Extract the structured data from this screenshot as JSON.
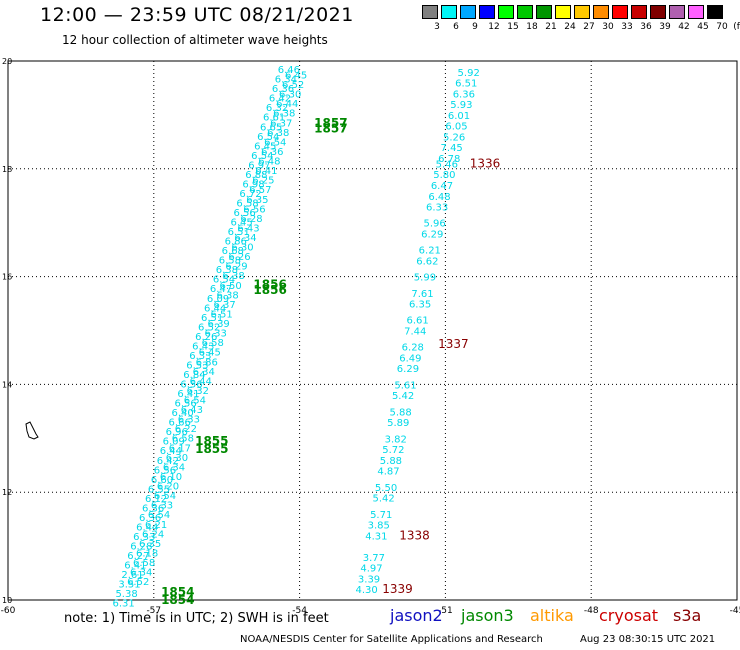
{
  "title": "12:00 — 23:59 UTC 08/21/2021",
  "subtitle": "12 hour collection of altimeter wave heights",
  "legend": {
    "unit": "(ft)",
    "bins": [
      {
        "label": "3",
        "color": "#808080"
      },
      {
        "label": "6",
        "color": "#00f5f5"
      },
      {
        "label": "9",
        "color": "#00a8ff"
      },
      {
        "label": "12",
        "color": "#0000ff"
      },
      {
        "label": "15",
        "color": "#00ff00"
      },
      {
        "label": "18",
        "color": "#00c800"
      },
      {
        "label": "21",
        "color": "#009600"
      },
      {
        "label": "24",
        "color": "#ffff00"
      },
      {
        "label": "27",
        "color": "#ffc800"
      },
      {
        "label": "30",
        "color": "#ff8c00"
      },
      {
        "label": "33",
        "color": "#ff0000"
      },
      {
        "label": "36",
        "color": "#c80000"
      },
      {
        "label": "39",
        "color": "#800000"
      },
      {
        "label": "42",
        "color": "#b060b0"
      },
      {
        "label": "45",
        "color": "#ff60ff"
      },
      {
        "label": "70",
        "color": "#000000"
      }
    ]
  },
  "axes": {
    "lon_min": -60,
    "lon_max": -45,
    "lat_min": 10,
    "lat_max": 20,
    "lon_ticks": [
      "-60",
      "-57",
      "-54",
      "-51",
      "-48",
      "-45"
    ],
    "lat_ticks": [
      "20",
      "18",
      "16",
      "14",
      "12",
      "10"
    ]
  },
  "colors": {
    "swh_text": "#00d8e8",
    "jason2": "#1010c0",
    "jason3": "#008800",
    "altika": "#ff9900",
    "cryosat": "#cc0000",
    "s3a": "#880000",
    "grid": "#000000",
    "coast": "#000000"
  },
  "track_right": {
    "points": [
      {
        "lon": -50.75,
        "lat": 19.8,
        "v": "5.92"
      },
      {
        "lon": -50.8,
        "lat": 19.6,
        "v": "6.51"
      },
      {
        "lon": -50.85,
        "lat": 19.4,
        "v": "6.36"
      },
      {
        "lon": -50.9,
        "lat": 19.2,
        "v": "5.93"
      },
      {
        "lon": -50.95,
        "lat": 19.0,
        "v": "6.01"
      },
      {
        "lon": -51.0,
        "lat": 18.8,
        "v": "6.05"
      },
      {
        "lon": -51.05,
        "lat": 18.6,
        "v": "5.26"
      },
      {
        "lon": -51.1,
        "lat": 18.4,
        "v": "7.45"
      },
      {
        "lon": -51.15,
        "lat": 18.2,
        "v": "6.78"
      },
      {
        "lon": -51.2,
        "lat": 18.1,
        "v": "5.46"
      },
      {
        "lon": -51.25,
        "lat": 17.9,
        "v": "5.80"
      },
      {
        "lon": -51.3,
        "lat": 17.7,
        "v": "6.47"
      },
      {
        "lon": -51.35,
        "lat": 17.5,
        "v": "6.48"
      },
      {
        "lon": -51.4,
        "lat": 17.3,
        "v": "6.33"
      },
      {
        "lon": -51.45,
        "lat": 17.0,
        "v": "5.96"
      },
      {
        "lon": -51.5,
        "lat": 16.8,
        "v": "6.29"
      },
      {
        "lon": -51.55,
        "lat": 16.5,
        "v": "6.21"
      },
      {
        "lon": -51.6,
        "lat": 16.3,
        "v": "6.62"
      },
      {
        "lon": -51.65,
        "lat": 16.0,
        "v": "5.99"
      },
      {
        "lon": -51.7,
        "lat": 15.7,
        "v": "7.61"
      },
      {
        "lon": -51.75,
        "lat": 15.5,
        "v": "6.35"
      },
      {
        "lon": -51.8,
        "lat": 15.2,
        "v": "6.61"
      },
      {
        "lon": -51.85,
        "lat": 15.0,
        "v": "7.44"
      },
      {
        "lon": -51.9,
        "lat": 14.7,
        "v": "6.28"
      },
      {
        "lon": -51.95,
        "lat": 14.5,
        "v": "6.49"
      },
      {
        "lon": -52.0,
        "lat": 14.3,
        "v": "6.29"
      },
      {
        "lon": -52.05,
        "lat": 14.0,
        "v": "5.61"
      },
      {
        "lon": -52.1,
        "lat": 13.8,
        "v": "5.42"
      },
      {
        "lon": -52.15,
        "lat": 13.5,
        "v": "5.88"
      },
      {
        "lon": -52.2,
        "lat": 13.3,
        "v": "5.89"
      },
      {
        "lon": -52.25,
        "lat": 13.0,
        "v": "3.82"
      },
      {
        "lon": -52.3,
        "lat": 12.8,
        "v": "5.72"
      },
      {
        "lon": -52.35,
        "lat": 12.6,
        "v": "5.88"
      },
      {
        "lon": -52.4,
        "lat": 12.4,
        "v": "4.87"
      },
      {
        "lon": -52.45,
        "lat": 12.1,
        "v": "5.50"
      },
      {
        "lon": -52.5,
        "lat": 11.9,
        "v": "5.42"
      },
      {
        "lon": -52.55,
        "lat": 11.6,
        "v": "5.71"
      },
      {
        "lon": -52.6,
        "lat": 11.4,
        "v": "3.85"
      },
      {
        "lon": -52.65,
        "lat": 11.2,
        "v": "4.31"
      },
      {
        "lon": -52.7,
        "lat": 10.8,
        "v": "3.77"
      },
      {
        "lon": -52.75,
        "lat": 10.6,
        "v": "4.97"
      },
      {
        "lon": -52.8,
        "lat": 10.4,
        "v": "3.39"
      },
      {
        "lon": -52.85,
        "lat": 10.2,
        "v": "4.30"
      }
    ],
    "times": [
      {
        "lon": -50.5,
        "lat": 18.1,
        "t": "1336"
      },
      {
        "lon": -51.15,
        "lat": 14.75,
        "t": "1337"
      },
      {
        "lon": -51.95,
        "lat": 11.2,
        "t": "1338"
      },
      {
        "lon": -52.3,
        "lat": 10.2,
        "t": "1339"
      }
    ]
  },
  "track_left_a": {
    "values": [
      "6.46",
      "6.34",
      "6.36",
      "6.42",
      "6.32",
      "6.61",
      "6.65",
      "6.54",
      "6.45",
      "6.54",
      "6.97",
      "6.88",
      "6.98",
      "6.72",
      "6.58",
      "6.56",
      "6.45",
      "6.51",
      "6.86",
      "6.68",
      "6.58",
      "6.38",
      "6.54",
      "6.47",
      "6.09",
      "6.44",
      "6.51",
      "6.52",
      "6.26",
      "6.43",
      "6.33",
      "6.53",
      "6.84",
      "6.56",
      "6.41",
      "6.56",
      "6.40",
      "6.66",
      "6.96",
      "6.09",
      "6.44",
      "6.42",
      "6.56",
      "6.60",
      "6.55",
      "6.12",
      "6.36",
      "6.36",
      "6.44",
      "6.33",
      "6.28",
      "6.27",
      "6.41",
      "2.61",
      "3.51",
      "5.38",
      "6.31"
    ],
    "start": {
      "lon": -54.45,
      "lat": 19.85
    },
    "end": {
      "lon": -57.85,
      "lat": 9.95
    }
  },
  "track_left_b": {
    "values": [
      "6.45",
      "6.52",
      "6.30",
      "6.44",
      "6.38",
      "6.37",
      "6.38",
      "6.54",
      "6.36",
      "6.48",
      "6.41",
      "6.25",
      "6.57",
      "6.35",
      "6.56",
      "6.28",
      "6.43",
      "6.34",
      "6.30",
      "6.26",
      "6.29",
      "6.38",
      "6.50",
      "6.38",
      "6.37",
      "6.51",
      "6.39",
      "6.33",
      "6.58",
      "6.45",
      "6.86",
      "6.34",
      "6.44",
      "6.32",
      "6.54",
      "6.43",
      "6.33",
      "6.22",
      "6.58",
      "6.17",
      "6.30",
      "6.34",
      "6.10",
      "6.20",
      "6.54",
      "6.33",
      "6.54",
      "6.21",
      "6.24",
      "6.35",
      "6.18",
      "6.58",
      "6.34",
      "6.52"
    ],
    "start": {
      "lon": -54.3,
      "lat": 19.75
    },
    "end": {
      "lon": -57.55,
      "lat": 10.35
    }
  },
  "times_green": [
    {
      "lon": -53.7,
      "lat": 18.85,
      "t": "1857"
    },
    {
      "lon": -53.7,
      "lat": 18.75,
      "t": "1857"
    },
    {
      "lon": -54.95,
      "lat": 15.85,
      "t": "1856"
    },
    {
      "lon": -54.95,
      "lat": 15.75,
      "t": "1856"
    },
    {
      "lon": -56.15,
      "lat": 12.95,
      "t": "1855"
    },
    {
      "lon": -56.15,
      "lat": 12.8,
      "t": "1855"
    },
    {
      "lon": -56.85,
      "lat": 10.15,
      "t": "1854"
    },
    {
      "lon": -56.85,
      "lat": 10.0,
      "t": "1854"
    }
  ],
  "note": "note:  1) Time is in UTC;  2) SWH is in feet",
  "satellites": [
    "jason2",
    "jason3",
    "altika",
    "cryosat",
    "s3a"
  ],
  "credit": "NOAA/NESDIS Center for Satellite Applications and Research",
  "stamp": "Aug 23 08:30:15 UTC 2021"
}
